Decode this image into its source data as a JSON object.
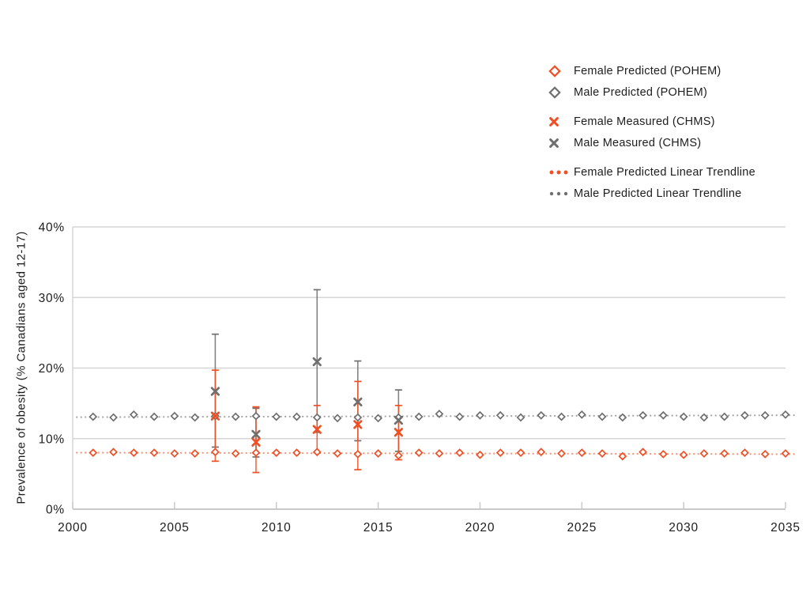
{
  "colors": {
    "female": "#f04e23",
    "male": "#6f6f6f",
    "grid": "#d6d6d6",
    "axis_line": "#c9c9c9",
    "text": "#1d1d1d"
  },
  "legend": {
    "position": "top-right",
    "items": [
      {
        "label": "Female Predicted (POHEM)",
        "marker": "diamond",
        "color_key": "female"
      },
      {
        "label": "Male Predicted (POHEM)",
        "marker": "diamond",
        "color_key": "male"
      },
      {
        "label": "Female Measured (CHMS)",
        "marker": "x",
        "color_key": "female"
      },
      {
        "label": "Male Measured (CHMS)",
        "marker": "x",
        "color_key": "male"
      },
      {
        "label": "Female Predicted Linear Trendline",
        "marker": "dots",
        "color_key": "female"
      },
      {
        "label": "Male Predicted Linear Trendline",
        "marker": "dots",
        "color_key": "male"
      }
    ]
  },
  "chart_data": {
    "type": "scatter",
    "title": "",
    "xlabel": "",
    "ylabel": "Prevalence of obesity (% Canadians aged 12-17)",
    "xlim": [
      2000,
      2035
    ],
    "ylim": [
      0,
      40
    ],
    "x_tick_values": [
      2000,
      2005,
      2010,
      2015,
      2020,
      2025,
      2030,
      2035
    ],
    "x_ticks": [
      "2000",
      "2005",
      "2010",
      "2015",
      "2020",
      "2025",
      "2030",
      "2035"
    ],
    "y_tick_values": [
      0,
      10,
      20,
      30,
      40
    ],
    "y_ticks": [
      "0%",
      "10%",
      "20%",
      "30%",
      "40%"
    ],
    "grid": "horizontal",
    "legend_position": "top-right",
    "series": [
      {
        "name": "Female Predicted (POHEM)",
        "type": "scatter-diamond",
        "color": "#f04e23",
        "x": [
          2001,
          2002,
          2003,
          2004,
          2005,
          2006,
          2007,
          2008,
          2009,
          2010,
          2011,
          2012,
          2013,
          2014,
          2015,
          2016,
          2017,
          2018,
          2019,
          2020,
          2021,
          2022,
          2023,
          2024,
          2025,
          2026,
          2027,
          2028,
          2029,
          2030,
          2031,
          2032,
          2033,
          2034,
          2035
        ],
        "y": [
          8.0,
          8.1,
          8.0,
          8.0,
          7.9,
          7.9,
          8.1,
          7.9,
          8.0,
          8.0,
          8.0,
          8.1,
          7.9,
          7.8,
          7.9,
          7.6,
          8.0,
          7.9,
          8.0,
          7.7,
          8.0,
          8.0,
          8.1,
          7.9,
          8.0,
          7.9,
          7.5,
          8.1,
          7.8,
          7.7,
          7.9,
          7.9,
          8.0,
          7.8,
          7.9
        ]
      },
      {
        "name": "Male Predicted (POHEM)",
        "type": "scatter-diamond",
        "color": "#6f6f6f",
        "x": [
          2001,
          2002,
          2003,
          2004,
          2005,
          2006,
          2007,
          2008,
          2009,
          2010,
          2011,
          2012,
          2013,
          2014,
          2015,
          2016,
          2017,
          2018,
          2019,
          2020,
          2021,
          2022,
          2023,
          2024,
          2025,
          2026,
          2027,
          2028,
          2029,
          2030,
          2031,
          2032,
          2033,
          2034,
          2035
        ],
        "y": [
          13.1,
          13.0,
          13.4,
          13.1,
          13.2,
          13.0,
          13.2,
          13.1,
          13.2,
          13.1,
          13.1,
          13.0,
          12.9,
          13.0,
          12.9,
          13.0,
          13.1,
          13.5,
          13.1,
          13.3,
          13.3,
          13.0,
          13.3,
          13.1,
          13.4,
          13.1,
          13.0,
          13.3,
          13.3,
          13.1,
          13.0,
          13.1,
          13.3,
          13.3,
          13.4
        ]
      },
      {
        "name": "Female Measured (CHMS)",
        "type": "scatter-x-errorbars",
        "color": "#f04e23",
        "x": [
          2007,
          2009,
          2012,
          2014,
          2016
        ],
        "y": [
          13.2,
          9.5,
          11.3,
          12.0,
          10.9
        ],
        "ci_low": [
          6.8,
          5.2,
          8.0,
          5.6,
          7.0
        ],
        "ci_high": [
          19.7,
          14.5,
          14.7,
          18.1,
          14.7
        ]
      },
      {
        "name": "Male Measured (CHMS)",
        "type": "scatter-x-errorbars",
        "color": "#6f6f6f",
        "x": [
          2007,
          2009,
          2012,
          2014,
          2016
        ],
        "y": [
          16.7,
          10.6,
          20.9,
          15.2,
          12.6
        ],
        "ci_low": [
          8.8,
          7.4,
          10.9,
          9.7,
          8.2
        ],
        "ci_high": [
          24.8,
          14.3,
          31.1,
          21.0,
          16.9
        ]
      },
      {
        "name": "Female Predicted Linear Trendline",
        "type": "trendline",
        "color": "#f04e23",
        "x": [
          2001,
          2035
        ],
        "y": [
          8.01,
          7.8
        ]
      },
      {
        "name": "Male Predicted Linear Trendline",
        "type": "trendline",
        "color": "#6f6f6f",
        "x": [
          2001,
          2035
        ],
        "y": [
          13.05,
          13.31
        ]
      }
    ]
  }
}
